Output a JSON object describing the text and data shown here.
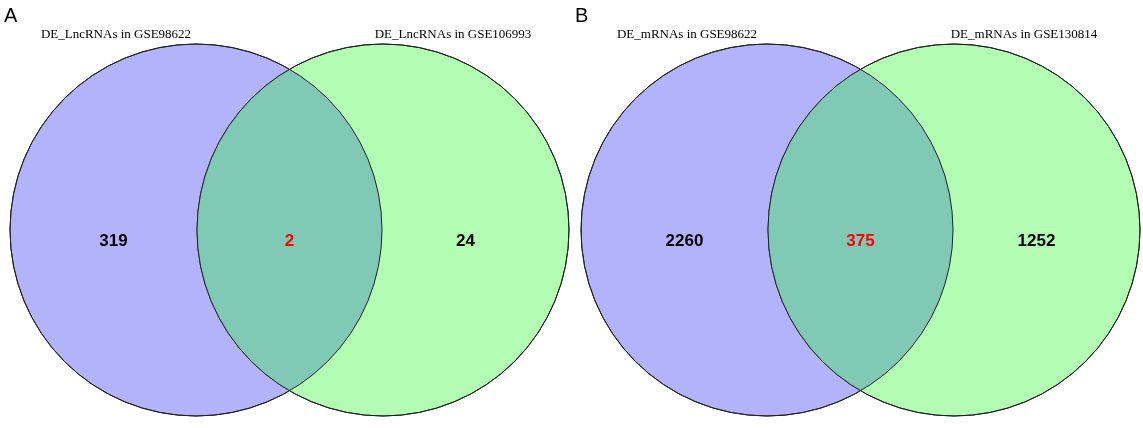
{
  "chart_data": [
    {
      "type": "other",
      "title": "A",
      "categories": [
        "DE_LncRNAs in GSE98622",
        null,
        "DE_LncRNAs in GSE106993"
      ],
      "values": [
        319,
        2,
        24
      ],
      "colors": [
        "#b3b3fc",
        "#80c9b4",
        "#b3fcb3"
      ],
      "data_labels": true
    },
    {
      "type": "other",
      "title": "B",
      "categories": [
        "DE_mRNAs in GSE98622",
        null,
        "DE_mRNAs in GSE130814"
      ],
      "values": [
        2260,
        375,
        1252
      ],
      "colors": [
        "#b3b3fc",
        "#80c9b4",
        "#b3fcb3"
      ],
      "data_labels": true
    }
  ]
}
